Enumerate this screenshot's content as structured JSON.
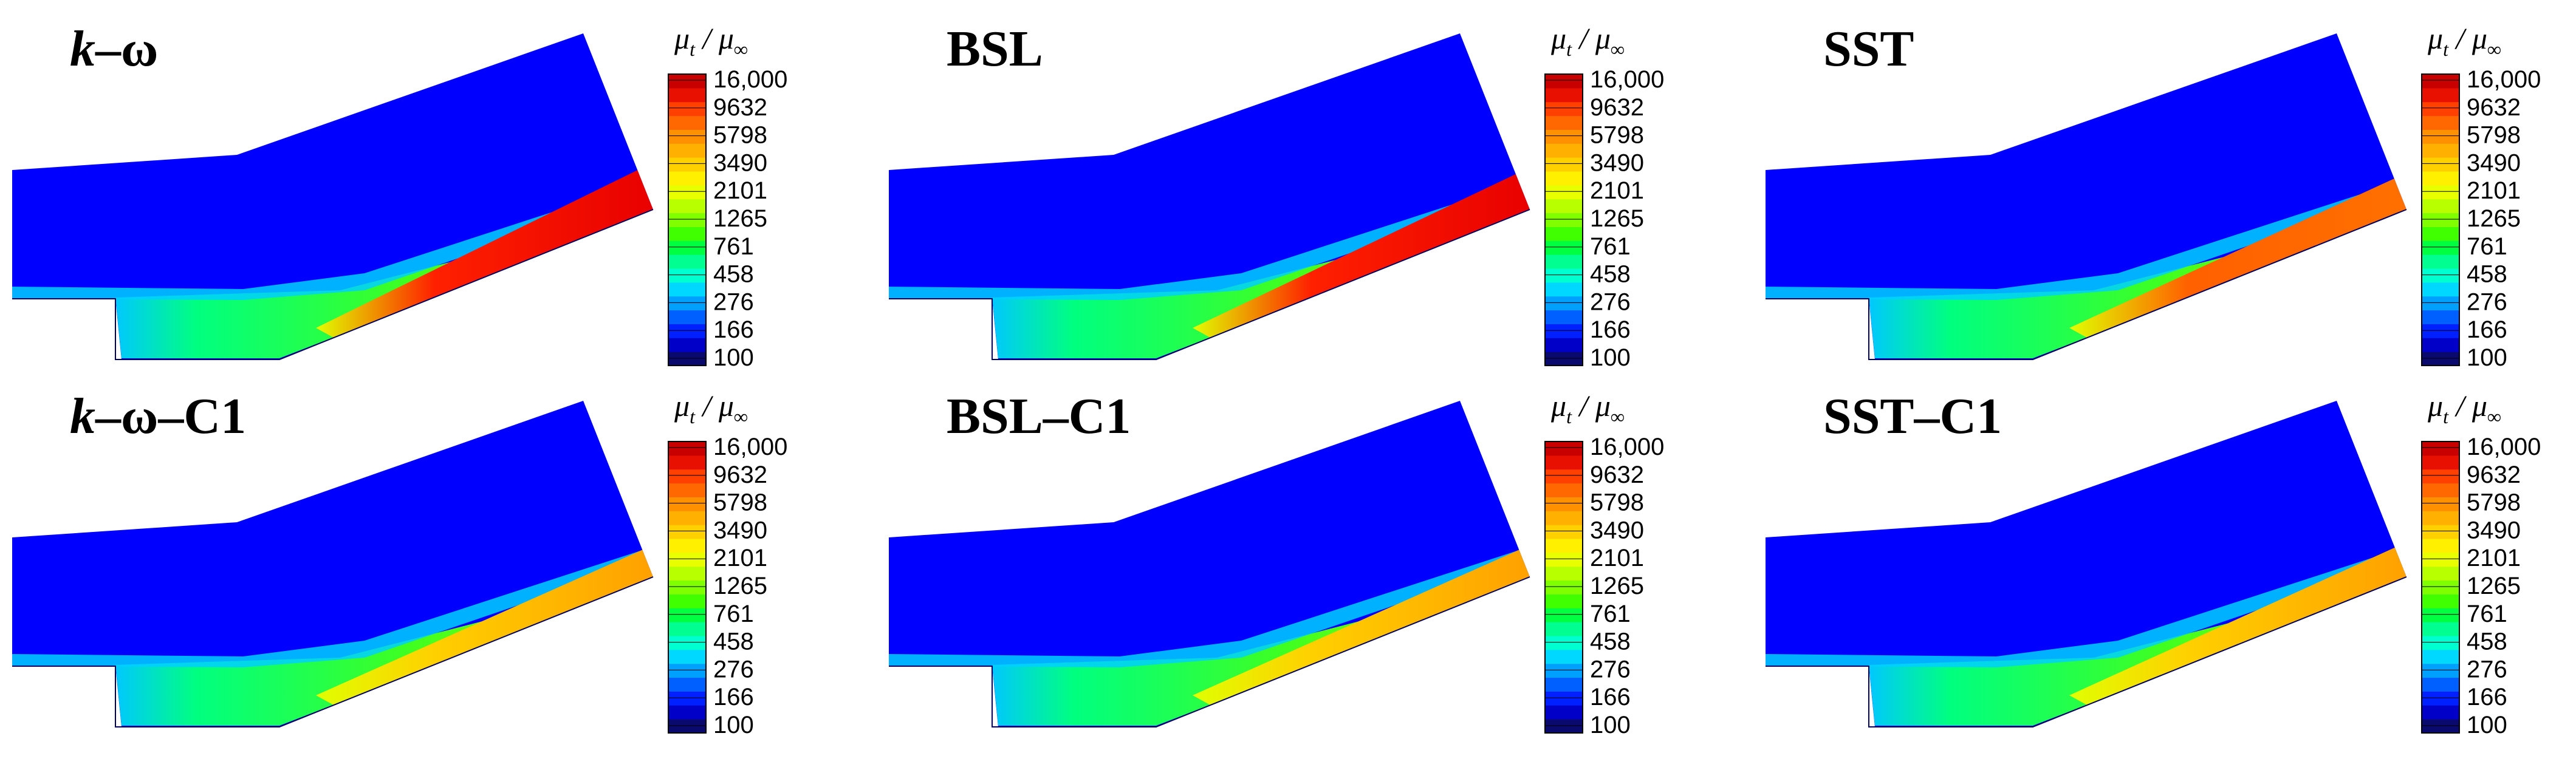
{
  "figure": {
    "colorbar": {
      "title": {
        "mu": "μ",
        "sub": "t",
        "slash": " / ",
        "mu2": "μ",
        "sub2": "∞"
      },
      "tick_labels": [
        "16,000",
        "9632",
        "5798",
        "3490",
        "2101",
        "1265",
        "761",
        "458",
        "276",
        "166",
        "100"
      ],
      "colors": [
        "#0a0a6e",
        "#0000c8",
        "#0020ff",
        "#0060ff",
        "#00a0ff",
        "#00d8ff",
        "#00ffd0",
        "#00ff90",
        "#00ff40",
        "#40ff00",
        "#80ff00",
        "#b8ff00",
        "#e8ff00",
        "#fff000",
        "#ffd000",
        "#ffb000",
        "#ff9000",
        "#ff6800",
        "#ff4000",
        "#e81000",
        "#c80000"
      ]
    },
    "panels": [
      {
        "id": "kw",
        "title_italic": "k",
        "title_rest": "–ω",
        "jet_intensity": 1.0
      },
      {
        "id": "bsl",
        "title_italic": "",
        "title_rest": "BSL",
        "jet_intensity": 0.82
      },
      {
        "id": "sst",
        "title_italic": "",
        "title_rest": "SST",
        "jet_intensity": 0.62
      },
      {
        "id": "kwc1",
        "title_italic": "k",
        "title_rest": "–ω–C1",
        "jet_intensity": 0.45
      },
      {
        "id": "bslc1",
        "title_italic": "",
        "title_rest": "BSL–C1",
        "jet_intensity": 0.45
      },
      {
        "id": "sstc1",
        "title_italic": "",
        "title_rest": "SST–C1",
        "jet_intensity": 0.55
      }
    ]
  },
  "chart_data": [
    {
      "type": "heatmap",
      "title": "k–ω",
      "quantity": "μt / μ∞",
      "colorbar_ticks": [
        16000,
        9632,
        5798,
        3490,
        2101,
        1265,
        761,
        458,
        276,
        166,
        100
      ],
      "scale": "log"
    },
    {
      "type": "heatmap",
      "title": "BSL",
      "quantity": "μt / μ∞",
      "colorbar_ticks": [
        16000,
        9632,
        5798,
        3490,
        2101,
        1265,
        761,
        458,
        276,
        166,
        100
      ],
      "scale": "log"
    },
    {
      "type": "heatmap",
      "title": "SST",
      "quantity": "μt / μ∞",
      "colorbar_ticks": [
        16000,
        9632,
        5798,
        3490,
        2101,
        1265,
        761,
        458,
        276,
        166,
        100
      ],
      "scale": "log"
    },
    {
      "type": "heatmap",
      "title": "k–ω–C1",
      "quantity": "μt / μ∞",
      "colorbar_ticks": [
        16000,
        9632,
        5798,
        3490,
        2101,
        1265,
        761,
        458,
        276,
        166,
        100
      ],
      "scale": "log"
    },
    {
      "type": "heatmap",
      "title": "BSL–C1",
      "quantity": "μt / μ∞",
      "colorbar_ticks": [
        16000,
        9632,
        5798,
        3490,
        2101,
        1265,
        761,
        458,
        276,
        166,
        100
      ],
      "scale": "log"
    },
    {
      "type": "heatmap",
      "title": "SST–C1",
      "quantity": "μt / μ∞",
      "colorbar_ticks": [
        16000,
        9632,
        5798,
        3490,
        2101,
        1265,
        761,
        458,
        276,
        166,
        100
      ],
      "scale": "log"
    }
  ]
}
